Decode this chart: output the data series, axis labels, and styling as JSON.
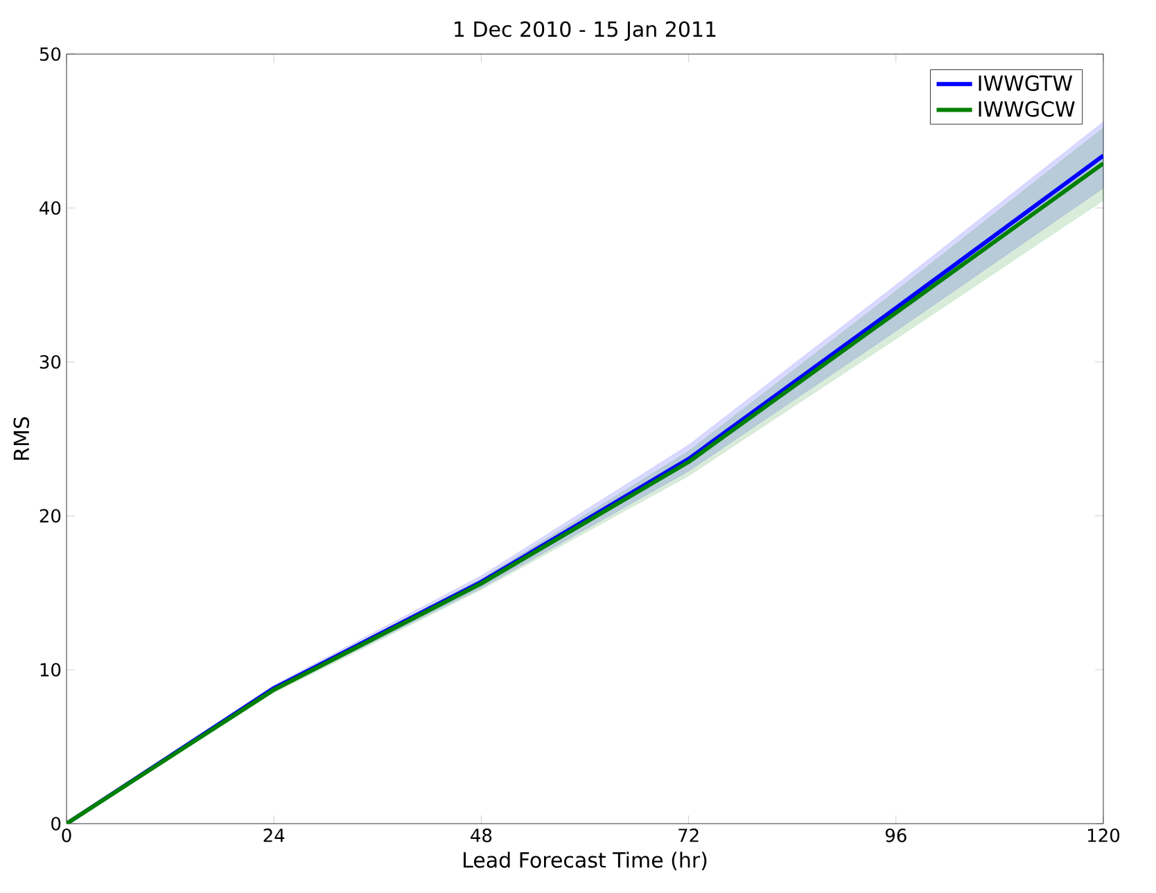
{
  "chart_data": {
    "type": "line",
    "title": "1 Dec 2010 - 15 Jan 2011",
    "xlabel": "Lead Forecast Time (hr)",
    "ylabel": "RMS",
    "x": [
      0,
      24,
      48,
      72,
      96,
      120
    ],
    "series": [
      {
        "name": "IWWGTW",
        "color": "#0000ff",
        "values": [
          0,
          8.8,
          15.7,
          23.7,
          33.5,
          43.4
        ],
        "lower": [
          0,
          8.6,
          15.3,
          22.9,
          32.0,
          41.3
        ],
        "upper": [
          0,
          9.0,
          16.1,
          24.6,
          35.0,
          45.6
        ]
      },
      {
        "name": "IWWGCW",
        "color": "#008000",
        "values": [
          0,
          8.7,
          15.6,
          23.5,
          33.2,
          42.9
        ],
        "lower": [
          0,
          8.5,
          15.2,
          22.6,
          31.5,
          40.5
        ],
        "upper": [
          0,
          8.9,
          15.9,
          24.2,
          34.6,
          45.2
        ]
      }
    ],
    "xlim": [
      0,
      120
    ],
    "ylim": [
      0,
      50
    ],
    "xticks": [
      0,
      24,
      48,
      72,
      96,
      120
    ],
    "yticks": [
      0,
      10,
      20,
      30,
      40,
      50
    ],
    "grid": false,
    "legend": "top right",
    "marker": "none",
    "line_style": "solid"
  }
}
